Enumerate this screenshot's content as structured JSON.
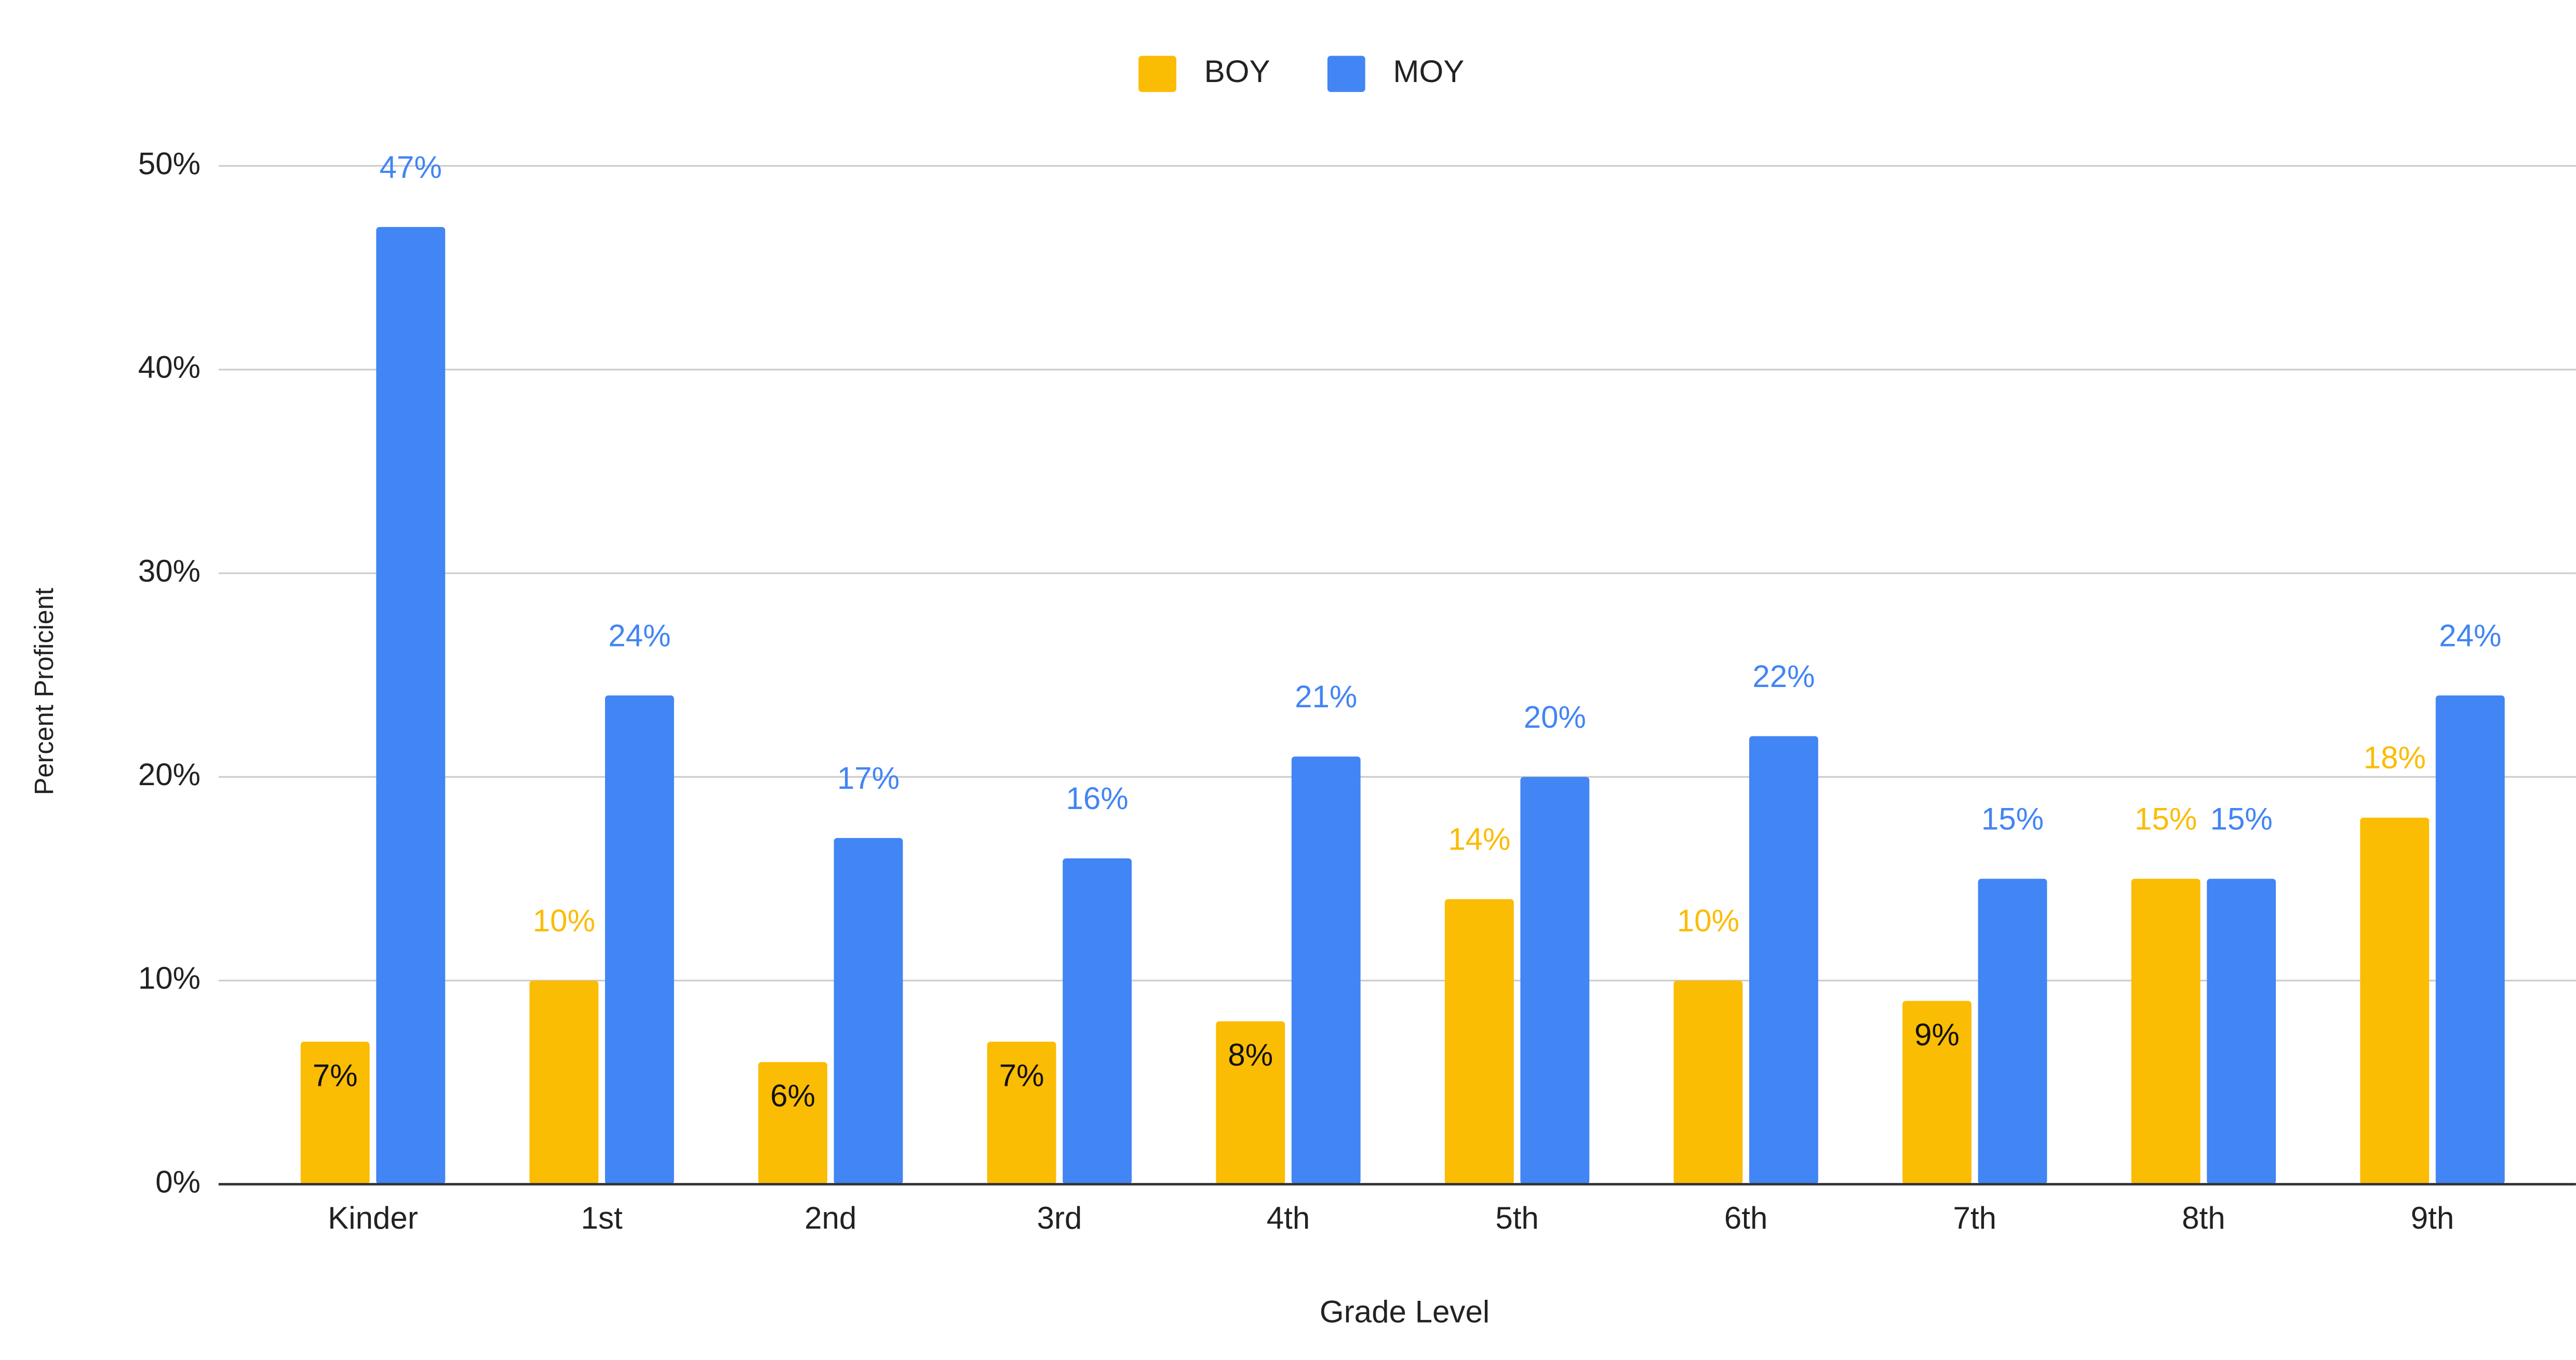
{
  "chart_data": {
    "type": "bar",
    "xlabel": "Grade Level",
    "ylabel": "Percent Proficient",
    "categories": [
      "Kinder",
      "1st",
      "2nd",
      "3rd",
      "4th",
      "5th",
      "6th",
      "7th",
      "8th",
      "9th"
    ],
    "series": [
      {
        "name": "BOY",
        "color": "#fbbc04",
        "values": [
          7,
          10,
          6,
          7,
          8,
          14,
          10,
          9,
          15,
          18
        ],
        "value_labels": [
          "7%",
          "10%",
          "6%",
          "7%",
          "8%",
          "14%",
          "10%",
          "9%",
          "15%",
          "18%"
        ]
      },
      {
        "name": "MOY",
        "color": "#4285f4",
        "values": [
          47,
          24,
          17,
          16,
          21,
          20,
          22,
          15,
          15,
          24
        ],
        "value_labels": [
          "47%",
          "24%",
          "17%",
          "16%",
          "21%",
          "20%",
          "22%",
          "15%",
          "15%",
          "24%"
        ]
      }
    ],
    "ylim": [
      0,
      50
    ],
    "yticks": [
      {
        "value": 0,
        "label": "0%"
      },
      {
        "value": 10,
        "label": "10%"
      },
      {
        "value": 20,
        "label": "20%"
      },
      {
        "value": 30,
        "label": "30%"
      },
      {
        "value": 40,
        "label": "40%"
      },
      {
        "value": 50,
        "label": "50%"
      }
    ],
    "grid": true,
    "legend": "top"
  }
}
